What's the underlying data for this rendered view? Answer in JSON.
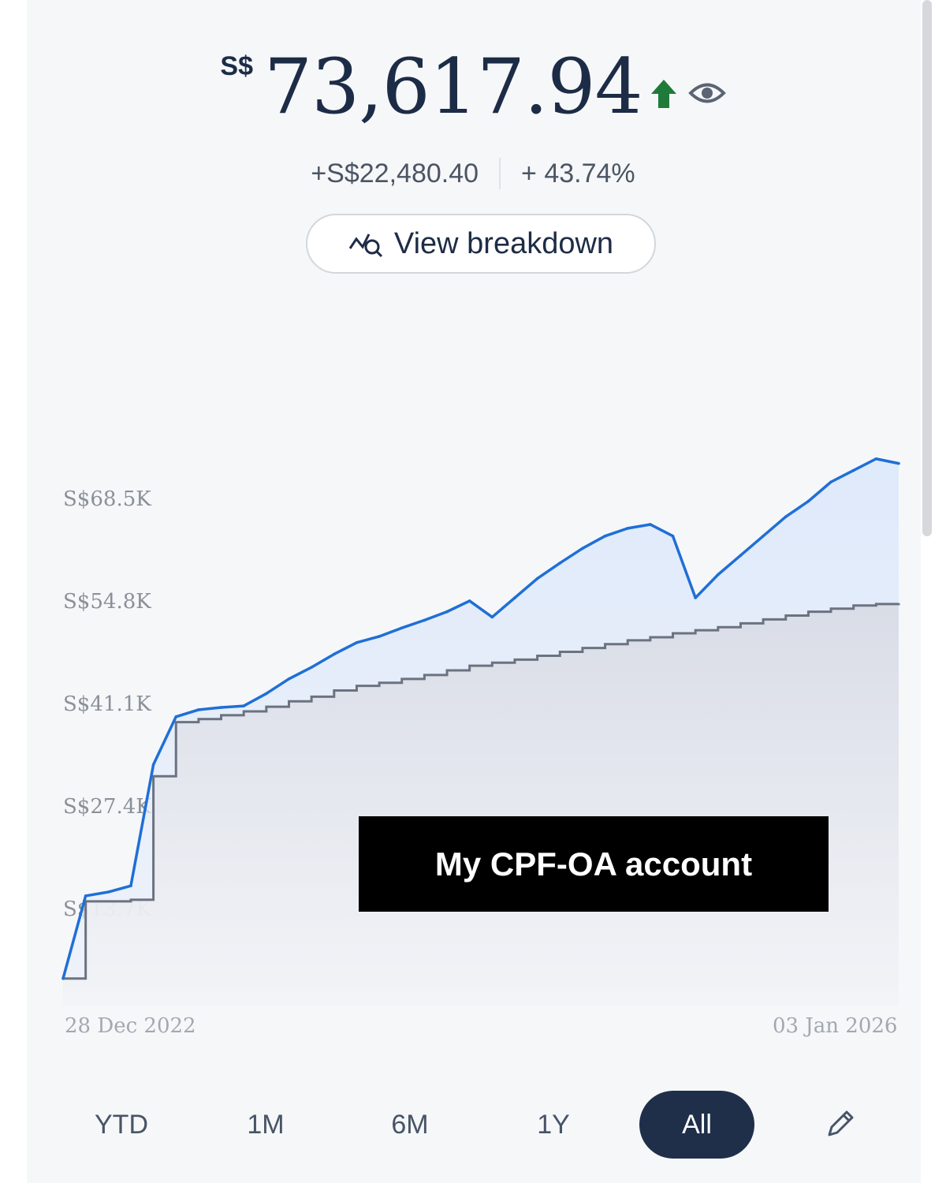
{
  "balance": {
    "currency": "S$",
    "amount": "73,617.94"
  },
  "change": {
    "absolute": "+S$22,480.40",
    "percent": "+ 43.74%"
  },
  "view_breakdown_label": "View breakdown",
  "overlay_text": "My CPF-OA account",
  "ranges": [
    "YTD",
    "1M",
    "6M",
    "1Y",
    "All"
  ],
  "active_range": "All",
  "colors": {
    "value_line": "#1f6fd6",
    "contribution_line": "#6b7280",
    "up_arrow": "#1e7b3a"
  },
  "icons": [
    "arrow-up-icon",
    "eye-icon",
    "chart-search-icon",
    "pencil-icon"
  ],
  "chart_data": {
    "type": "line",
    "y_tick_labels": [
      "S$68.5K",
      "S$54.8K",
      "S$41.1K",
      "S$27.4K",
      "S$13.7K"
    ],
    "y_ticks": [
      68500,
      54800,
      41100,
      27400,
      13700
    ],
    "ylim": [
      0,
      72000
    ],
    "x_start_label": "28 Dec 2022",
    "x_end_label": "03 Jan 2026",
    "x": [
      "2022-12",
      "2023-01",
      "2023-02",
      "2023-03",
      "2023-04",
      "2023-05",
      "2023-06",
      "2023-07",
      "2023-08",
      "2023-09",
      "2023-10",
      "2023-11",
      "2023-12",
      "2024-01",
      "2024-02",
      "2024-03",
      "2024-04",
      "2024-05",
      "2024-06",
      "2024-07",
      "2024-08",
      "2024-09",
      "2024-10",
      "2024-11",
      "2024-12",
      "2025-01",
      "2025-02",
      "2025-03",
      "2025-04",
      "2025-05",
      "2025-06",
      "2025-07",
      "2025-08",
      "2025-09",
      "2025-10",
      "2025-11",
      "2025-12",
      "2026-01"
    ],
    "series": [
      {
        "values": [
          3500,
          14200,
          14700,
          15500,
          31200,
          37400,
          38300,
          38600,
          38800,
          40400,
          42300,
          43800,
          45500,
          47000,
          47800,
          48900,
          49900,
          51000,
          52400,
          50300,
          52800,
          55300,
          57300,
          59200,
          60800,
          61800,
          62300,
          60800,
          52800,
          55800,
          58300,
          60800,
          63300,
          65300,
          67800,
          69300,
          70800,
          70200
        ]
      },
      {
        "values": [
          3500,
          13500,
          13500,
          13700,
          29700,
          36700,
          37100,
          37600,
          38100,
          38700,
          39400,
          40000,
          40800,
          41400,
          41800,
          42300,
          42800,
          43400,
          44000,
          44400,
          44800,
          45300,
          45800,
          46300,
          46800,
          47300,
          47700,
          48200,
          48600,
          49000,
          49500,
          50000,
          50500,
          51000,
          51400,
          51800,
          52000,
          52100
        ]
      }
    ]
  }
}
